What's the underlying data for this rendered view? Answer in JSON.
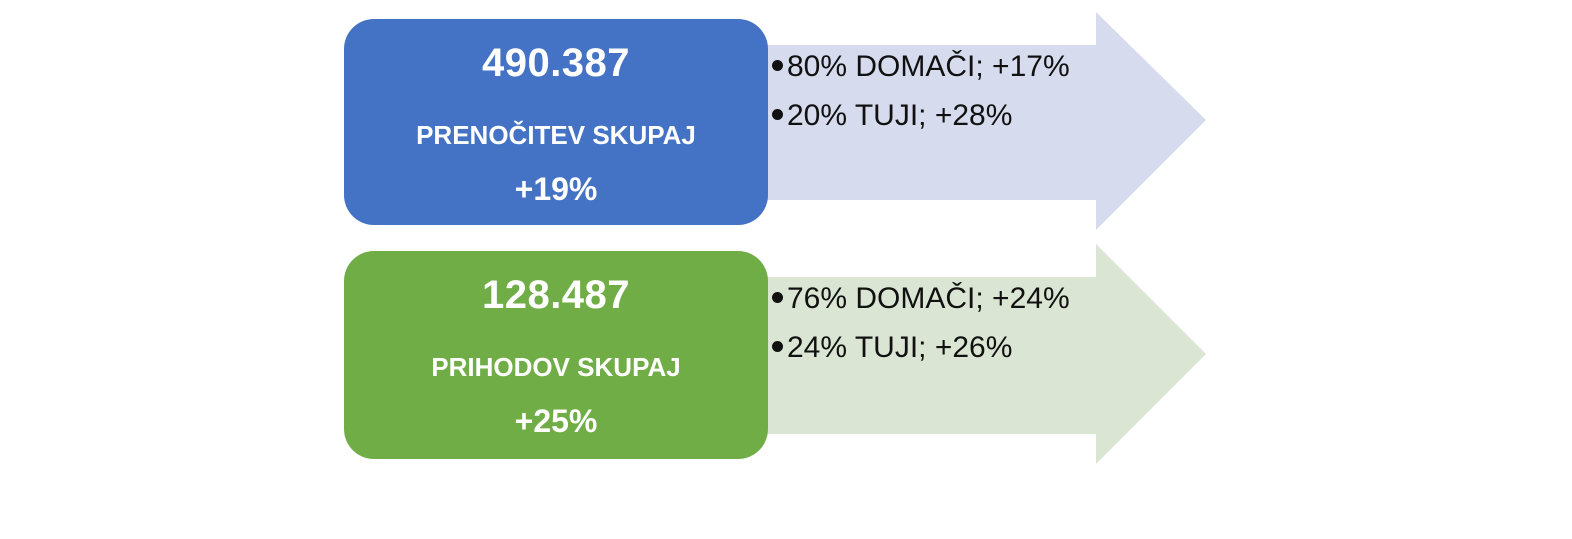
{
  "colors": {
    "blue_box": "#4472C4",
    "blue_arrow": "#D6DCEE",
    "green_box": "#70AD47",
    "green_arrow": "#DAE6D3"
  },
  "blocks": [
    {
      "value": "490.387",
      "label": "PRENOČITEV SKUPAJ",
      "change": "+19%",
      "bullets": [
        "80% DOMAČI; +17%",
        "20% TUJI; +28%"
      ]
    },
    {
      "value": "128.487",
      "label": "PRIHODOV SKUPAJ",
      "change": "+25%",
      "bullets": [
        "76% DOMAČI; +24%",
        "24% TUJI; +26%"
      ]
    }
  ]
}
